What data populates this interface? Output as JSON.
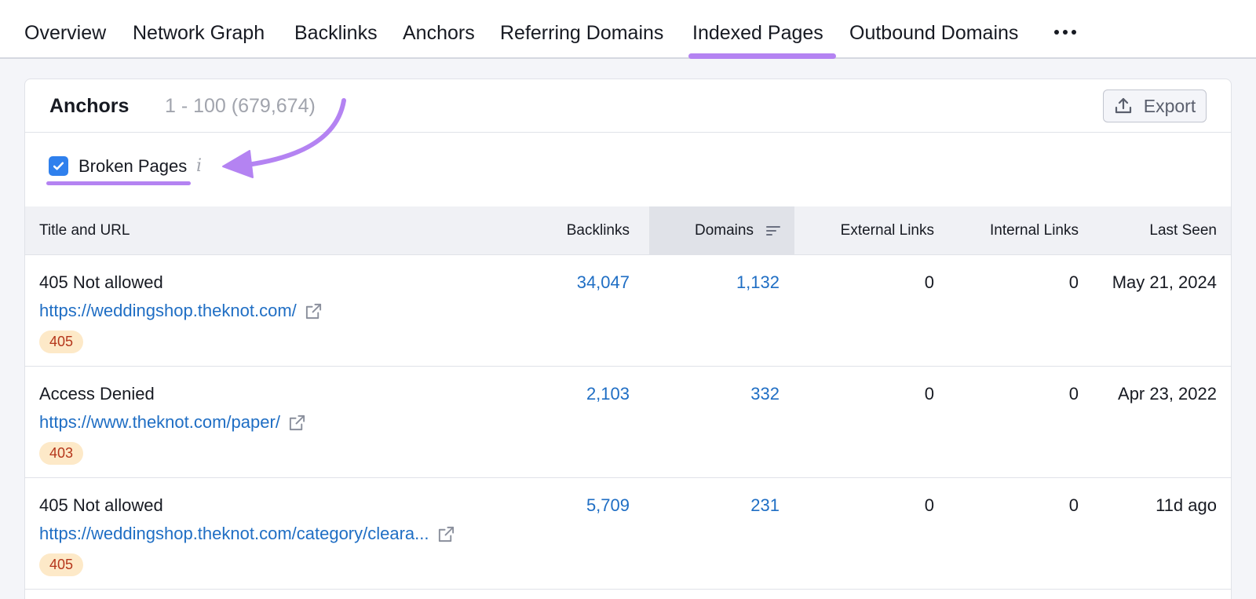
{
  "colors": {
    "accent_purple": "#b483f2",
    "checkbox_blue": "#2f80ed",
    "link_blue": "#1f6ec4",
    "badge_bg": "#fde9c8",
    "badge_text": "#b5361b"
  },
  "tabs": [
    {
      "label": "Overview"
    },
    {
      "label": "Network Graph"
    },
    {
      "label": "Backlinks"
    },
    {
      "label": "Anchors"
    },
    {
      "label": "Referring Domains"
    },
    {
      "label": "Indexed Pages",
      "active": true
    },
    {
      "label": "Outbound Domains"
    }
  ],
  "card": {
    "title": "Anchors",
    "count": "1 - 100 (679,674)",
    "export_label": "Export"
  },
  "filter": {
    "label": "Broken Pages",
    "checked": true,
    "info_glyph": "i"
  },
  "table": {
    "columns": [
      "Title and URL",
      "Backlinks",
      "Domains",
      "External Links",
      "Internal Links",
      "Last Seen"
    ],
    "sorted_column": "Domains",
    "rows": [
      {
        "title": "405 Not allowed",
        "url": "https://weddingshop.theknot.com/",
        "status": "405",
        "backlinks": "34,047",
        "domains": "1,132",
        "external": "0",
        "internal": "0",
        "last_seen": "May 21, 2024"
      },
      {
        "title": "Access Denied",
        "url": "https://www.theknot.com/paper/",
        "status": "403",
        "backlinks": "2,103",
        "domains": "332",
        "external": "0",
        "internal": "0",
        "last_seen": "Apr 23, 2022"
      },
      {
        "title": "405 Not allowed",
        "url": "https://weddingshop.theknot.com/category/cleara...",
        "status": "405",
        "backlinks": "5,709",
        "domains": "231",
        "external": "0",
        "internal": "0",
        "last_seen": "11d ago"
      }
    ]
  }
}
